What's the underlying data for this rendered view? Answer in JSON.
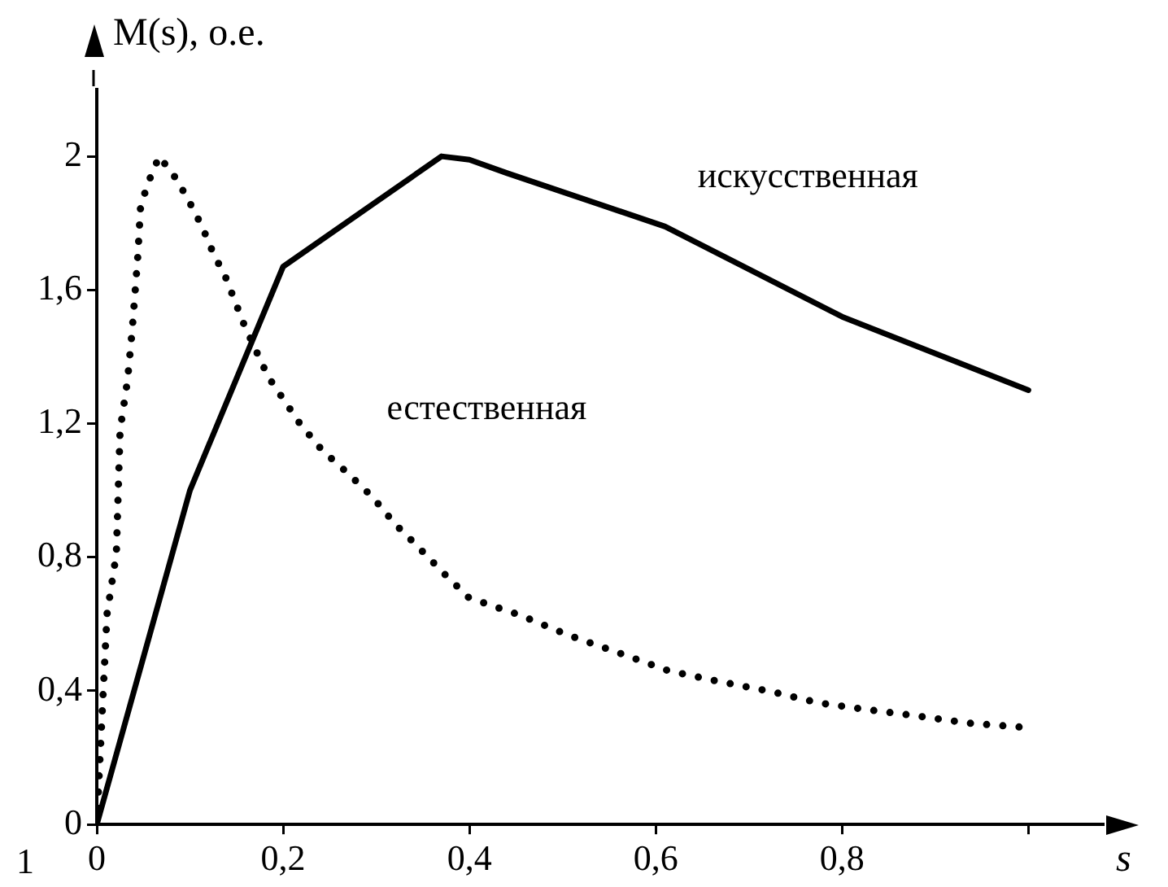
{
  "chart_data": {
    "type": "line",
    "xlabel": "s",
    "ylabel": "M(s), о.е.",
    "annotations": [
      "1"
    ],
    "xlim": [
      0,
      1.08
    ],
    "xticks": [
      {
        "value": 0,
        "label": "0"
      },
      {
        "value": 0.2,
        "label": "0,2"
      },
      {
        "value": 0.4,
        "label": "0,4"
      },
      {
        "value": 0.6,
        "label": "0,6"
      },
      {
        "value": 0.8,
        "label": "0,8"
      },
      {
        "value": 1,
        "label": null
      }
    ],
    "ylim": [
      0,
      2.2
    ],
    "yticks": [
      {
        "value": 0,
        "label": "0"
      },
      {
        "value": 0.4,
        "label": "0,4"
      },
      {
        "value": 0.8,
        "label": "0,8"
      },
      {
        "value": 1.2,
        "label": "1,2"
      },
      {
        "value": 1.6,
        "label": "1,6"
      },
      {
        "value": 2,
        "label": "2"
      }
    ],
    "grid": false,
    "legend": false,
    "marker": "none",
    "series": [
      {
        "name": "искусственная",
        "color": "#000000",
        "line_style": "solid",
        "x": [
          0,
          0.1,
          0.2,
          0.37,
          0.4,
          0.44,
          0.61,
          0.8,
          1.0
        ],
        "values": [
          0,
          1.0,
          1.67,
          2.0,
          1.99,
          1.95,
          1.79,
          1.52,
          1.3
        ]
      },
      {
        "name": "естественная",
        "color": "#000000",
        "line_style": "dotted",
        "x": [
          0,
          0.005,
          0.011,
          0.021,
          0.025,
          0.033,
          0.038,
          0.044,
          0.047,
          0.055,
          0.067,
          0.086,
          0.1,
          0.113,
          0.125,
          0.138,
          0.159,
          0.184,
          0.218,
          0.242,
          0.27,
          0.296,
          0.32,
          0.347,
          0.372,
          0.399,
          0.426,
          0.453,
          0.506,
          0.56,
          0.614,
          0.668,
          0.722,
          0.775,
          0.829,
          0.883,
          0.937,
          0.99
        ],
        "values": [
          0,
          0.29,
          0.63,
          0.81,
          1.18,
          1.33,
          1.48,
          1.7,
          1.85,
          1.92,
          2.0,
          1.93,
          1.86,
          1.79,
          1.71,
          1.64,
          1.49,
          1.34,
          1.2,
          1.12,
          1.05,
          0.98,
          0.9,
          0.825,
          0.753,
          0.68,
          0.653,
          0.628,
          0.567,
          0.514,
          0.46,
          0.428,
          0.399,
          0.364,
          0.343,
          0.324,
          0.303,
          0.292
        ]
      }
    ]
  }
}
